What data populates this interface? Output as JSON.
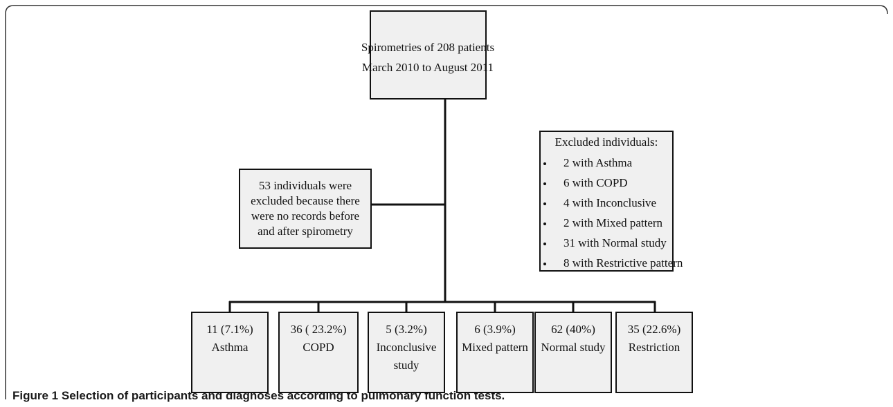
{
  "figure": {
    "top_box": {
      "lines": [
        "Spirometries of 208 patients",
        "March 2010 to August 2011"
      ]
    },
    "excluded_box": {
      "lines": [
        "53 individuals were",
        "excluded because  there",
        "were no records before",
        "and after spirometry"
      ]
    },
    "excluded_list": {
      "title": "Excluded individuals:",
      "items": [
        "2 with Asthma",
        "6 with COPD",
        "4 with Inconclusive",
        "2 with Mixed pattern",
        "31 with Normal study",
        "8 with Restrictive pattern"
      ]
    },
    "outcomes": [
      {
        "lines": [
          "11 (7.1%)",
          "Asthma"
        ]
      },
      {
        "lines": [
          "36 ( 23.2%)",
          "COPD"
        ]
      },
      {
        "lines": [
          "5 (3.2%)",
          "Inconclusive",
          "study"
        ]
      },
      {
        "lines": [
          "6 (3.9%)",
          "Mixed pattern"
        ]
      },
      {
        "lines": [
          "62 (40%)",
          "Normal study"
        ]
      },
      {
        "lines": [
          "35 (22.6%)",
          "Restriction"
        ]
      }
    ]
  },
  "caption": {
    "label": "Figure 1",
    "text": "Selection of participants and diagnoses according to pulmonary function tests."
  }
}
